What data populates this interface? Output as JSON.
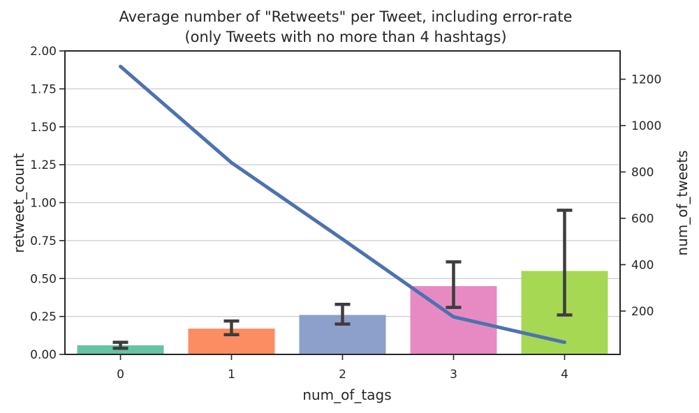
{
  "chart_data": {
    "type": "bar",
    "title_line1": "Average number of \"Retweets\" per Tweet, including error-rate",
    "title_line2": "(only Tweets with no more than 4 hashtags)",
    "xlabel": "num_of_tags",
    "ylabel": "retweet_count",
    "y2label": "num_of_tweets",
    "categories": [
      "0",
      "1",
      "2",
      "3",
      "4"
    ],
    "bars": {
      "values": [
        0.06,
        0.17,
        0.26,
        0.45,
        0.55
      ],
      "ci_low": [
        0.04,
        0.13,
        0.2,
        0.31,
        0.26
      ],
      "ci_high": [
        0.08,
        0.22,
        0.33,
        0.61,
        0.95
      ],
      "colors": [
        "#66c2a5",
        "#fc8d62",
        "#8da0cb",
        "#e78ac3",
        "#a6d854"
      ]
    },
    "line": {
      "values": [
        1255,
        840,
        510,
        175,
        65
      ],
      "color": "#4c72b0"
    },
    "ylim": [
      0,
      2.0
    ],
    "y_ticks": [
      "0.00",
      "0.25",
      "0.50",
      "0.75",
      "1.00",
      "1.25",
      "1.50",
      "1.75",
      "2.00"
    ],
    "y2lim": [
      13,
      1322
    ],
    "y2_ticks": [
      "200",
      "400",
      "600",
      "800",
      "1000",
      "1200"
    ],
    "grid": true
  }
}
